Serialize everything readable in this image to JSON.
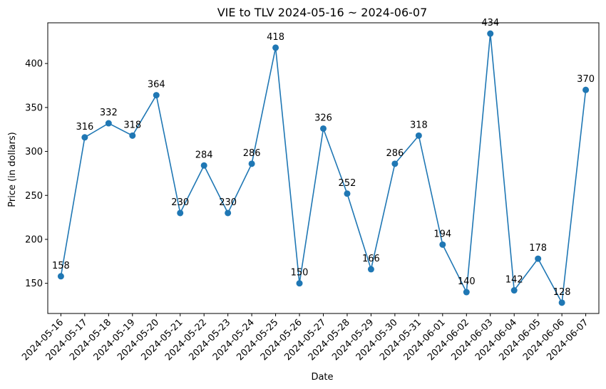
{
  "chart_data": {
    "type": "line",
    "title": "VIE to TLV  2024-05-16 ~ 2024-06-07",
    "xlabel": "Date",
    "ylabel": "Price (in dollars)",
    "x": [
      "2024-05-16",
      "2024-05-17",
      "2024-05-18",
      "2024-05-19",
      "2024-05-20",
      "2024-05-21",
      "2024-05-22",
      "2024-05-23",
      "2024-05-24",
      "2024-05-25",
      "2024-05-26",
      "2024-05-27",
      "2024-05-28",
      "2024-05-29",
      "2024-05-30",
      "2024-05-31",
      "2024-06-01",
      "2024-06-02",
      "2024-06-03",
      "2024-06-04",
      "2024-06-05",
      "2024-06-06",
      "2024-06-07"
    ],
    "series": [
      {
        "values": [
          158,
          316,
          332,
          318,
          364,
          230,
          284,
          230,
          286,
          418,
          150,
          326,
          252,
          166,
          286,
          318,
          194,
          140,
          434,
          142,
          178,
          128,
          370
        ],
        "color": "#1f77b4",
        "marker": "circle"
      }
    ],
    "yticks": [
      150,
      200,
      250,
      300,
      350,
      400
    ],
    "ylim": [
      115.7,
      446.3
    ],
    "data_labels": true,
    "grid": false,
    "legend": "none"
  }
}
